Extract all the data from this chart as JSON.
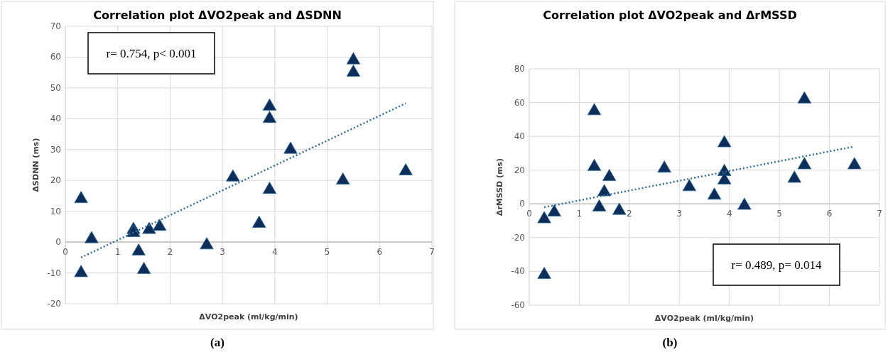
{
  "chart_data": [
    {
      "type": "scatter",
      "title": "Correlation plot ΔVO2peak and ΔSDNN",
      "xlabel": "ΔVO2peak (ml/kg/min)",
      "ylabel": "ΔSDNN (ms)",
      "xlim": [
        0,
        7
      ],
      "xticks": [
        0,
        1,
        2,
        3,
        4,
        5,
        6,
        7
      ],
      "ylim": [
        -20,
        70
      ],
      "yticks": [
        -20,
        -10,
        0,
        10,
        20,
        30,
        40,
        50,
        60,
        70
      ],
      "grid": true,
      "annotations": [
        "r= 0.754, p< 0.001",
        "(a)"
      ],
      "series": [
        {
          "marker": "triangle",
          "color": "#0d2d5a",
          "x": [
            0.3,
            0.3,
            0.5,
            1.3,
            1.3,
            1.4,
            1.5,
            1.6,
            1.8,
            2.7,
            3.2,
            3.7,
            3.9,
            3.9,
            3.9,
            4.3,
            5.3,
            5.5,
            5.5,
            6.5
          ],
          "values": [
            14,
            -10,
            1,
            4,
            3,
            -3,
            -9,
            4,
            5,
            -1,
            21,
            6,
            44,
            40,
            17,
            30,
            20,
            59,
            55,
            23
          ]
        },
        {
          "type": "line",
          "color": "#2f6f9a",
          "line_style": "dotted",
          "x": [
            0.3,
            6.5
          ],
          "values": [
            -5,
            45
          ]
        }
      ]
    },
    {
      "type": "scatter",
      "title": "Correlation plot ΔVO2peak and ΔrMSSD",
      "xlabel": "ΔVO2peak (ml/kg/min)",
      "ylabel": "ΔrMSSD (ms)",
      "xlim": [
        0,
        7
      ],
      "xticks": [
        0,
        1,
        2,
        3,
        4,
        5,
        6,
        7
      ],
      "ylim": [
        -60,
        80
      ],
      "yticks": [
        -60,
        -40,
        -20,
        0,
        20,
        40,
        60,
        80
      ],
      "grid": true,
      "annotations": [
        "r= 0.489, p= 0.014",
        "(b)"
      ],
      "series": [
        {
          "marker": "triangle",
          "color": "#0d2d5a",
          "x": [
            0.3,
            0.3,
            0.5,
            1.3,
            1.3,
            1.4,
            1.5,
            1.6,
            1.8,
            2.7,
            3.2,
            3.7,
            3.9,
            3.9,
            3.9,
            4.3,
            5.3,
            5.5,
            5.5,
            6.5
          ],
          "values": [
            -9,
            -42,
            -5,
            55,
            22,
            -2,
            7,
            16,
            -4,
            21,
            10,
            5,
            36,
            19,
            14,
            -1,
            15,
            62,
            23,
            23
          ]
        },
        {
          "type": "line",
          "color": "#2f6f9a",
          "line_style": "dotted",
          "x": [
            0.3,
            6.5
          ],
          "values": [
            -2,
            34
          ]
        }
      ]
    }
  ]
}
